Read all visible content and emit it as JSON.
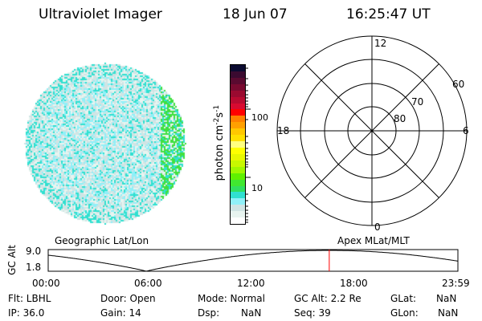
{
  "header": {
    "instrument": "Ultraviolet Imager",
    "date": "18 Jun 07",
    "time": "16:25:47 UT"
  },
  "colorbar": {
    "label": "photon cm",
    "exp1": "-2",
    "mid": "s",
    "exp2": "-1",
    "tick_100": "100",
    "tick_10": "10",
    "colors": [
      "#0a0a30",
      "#3a0a30",
      "#5a0a30",
      "#7a0a30",
      "#9a0a30",
      "#b80a30",
      "#d80a30",
      "#ff0000",
      "#ff8000",
      "#ffa000",
      "#ffc800",
      "#ffe000",
      "#ffff80",
      "#ffff00",
      "#e8f800",
      "#c8f800",
      "#a0f800",
      "#60f000",
      "#40e830",
      "#30e060",
      "#30e0d0",
      "#90f0f8",
      "#d0e4e4",
      "#e8f4f0",
      "#ffffff"
    ]
  },
  "polar": {
    "mlt_labels": {
      "top": "12",
      "bottom": "0",
      "left": "18",
      "right": "6"
    },
    "lat_labels": [
      "80",
      "70",
      "60"
    ]
  },
  "altitude_panel": {
    "left_title": "Geographic Lat/Lon",
    "right_title": "Apex MLat/MLT",
    "ylabel": "GC Alt",
    "y_ticks": [
      "9.0",
      "1.8"
    ],
    "x_ticks": [
      "00:00",
      "06:00",
      "12:00",
      "18:00",
      "23:59"
    ],
    "current_time_fraction": 0.686,
    "marker_color": "#ff0000"
  },
  "info": {
    "flt": "Flt: LBHL",
    "ip": "IP: 36.0",
    "door": "Door: Open",
    "gain": "Gain: 14",
    "mode": "Mode: Normal",
    "dsp_label": "Dsp:",
    "dsp_value": "NaN",
    "gcalt": "GC Alt: 2.2 Re",
    "seq": "Seq: 39",
    "glat_label": "GLat:",
    "glat_value": "NaN",
    "glon_label": "GLon:",
    "glon_value": "NaN"
  }
}
